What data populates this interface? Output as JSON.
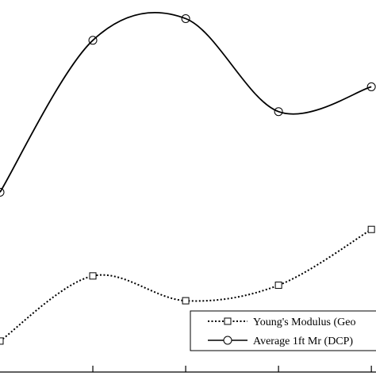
{
  "chart_data": {
    "type": "line",
    "title": "",
    "xlabel": "",
    "ylabel": "",
    "x": [
      1,
      2,
      3,
      4,
      5
    ],
    "series": [
      {
        "name": "Young's Modulus (Geo",
        "values": [
          1.0,
          3.1,
          2.3,
          2.8,
          4.6
        ],
        "line_style": "dotted",
        "marker": "square"
      },
      {
        "name": "Average 1ft Mr (DCP)",
        "values": [
          5.8,
          10.7,
          11.4,
          8.4,
          9.2
        ],
        "line_style": "solid",
        "marker": "circle"
      }
    ],
    "xlim": [
      1,
      5.05
    ],
    "ylim": [
      0,
      12
    ],
    "grid": false,
    "legend_position": "bottom-right",
    "colors": {
      "line": "#000000",
      "background": "#ffffff"
    }
  }
}
